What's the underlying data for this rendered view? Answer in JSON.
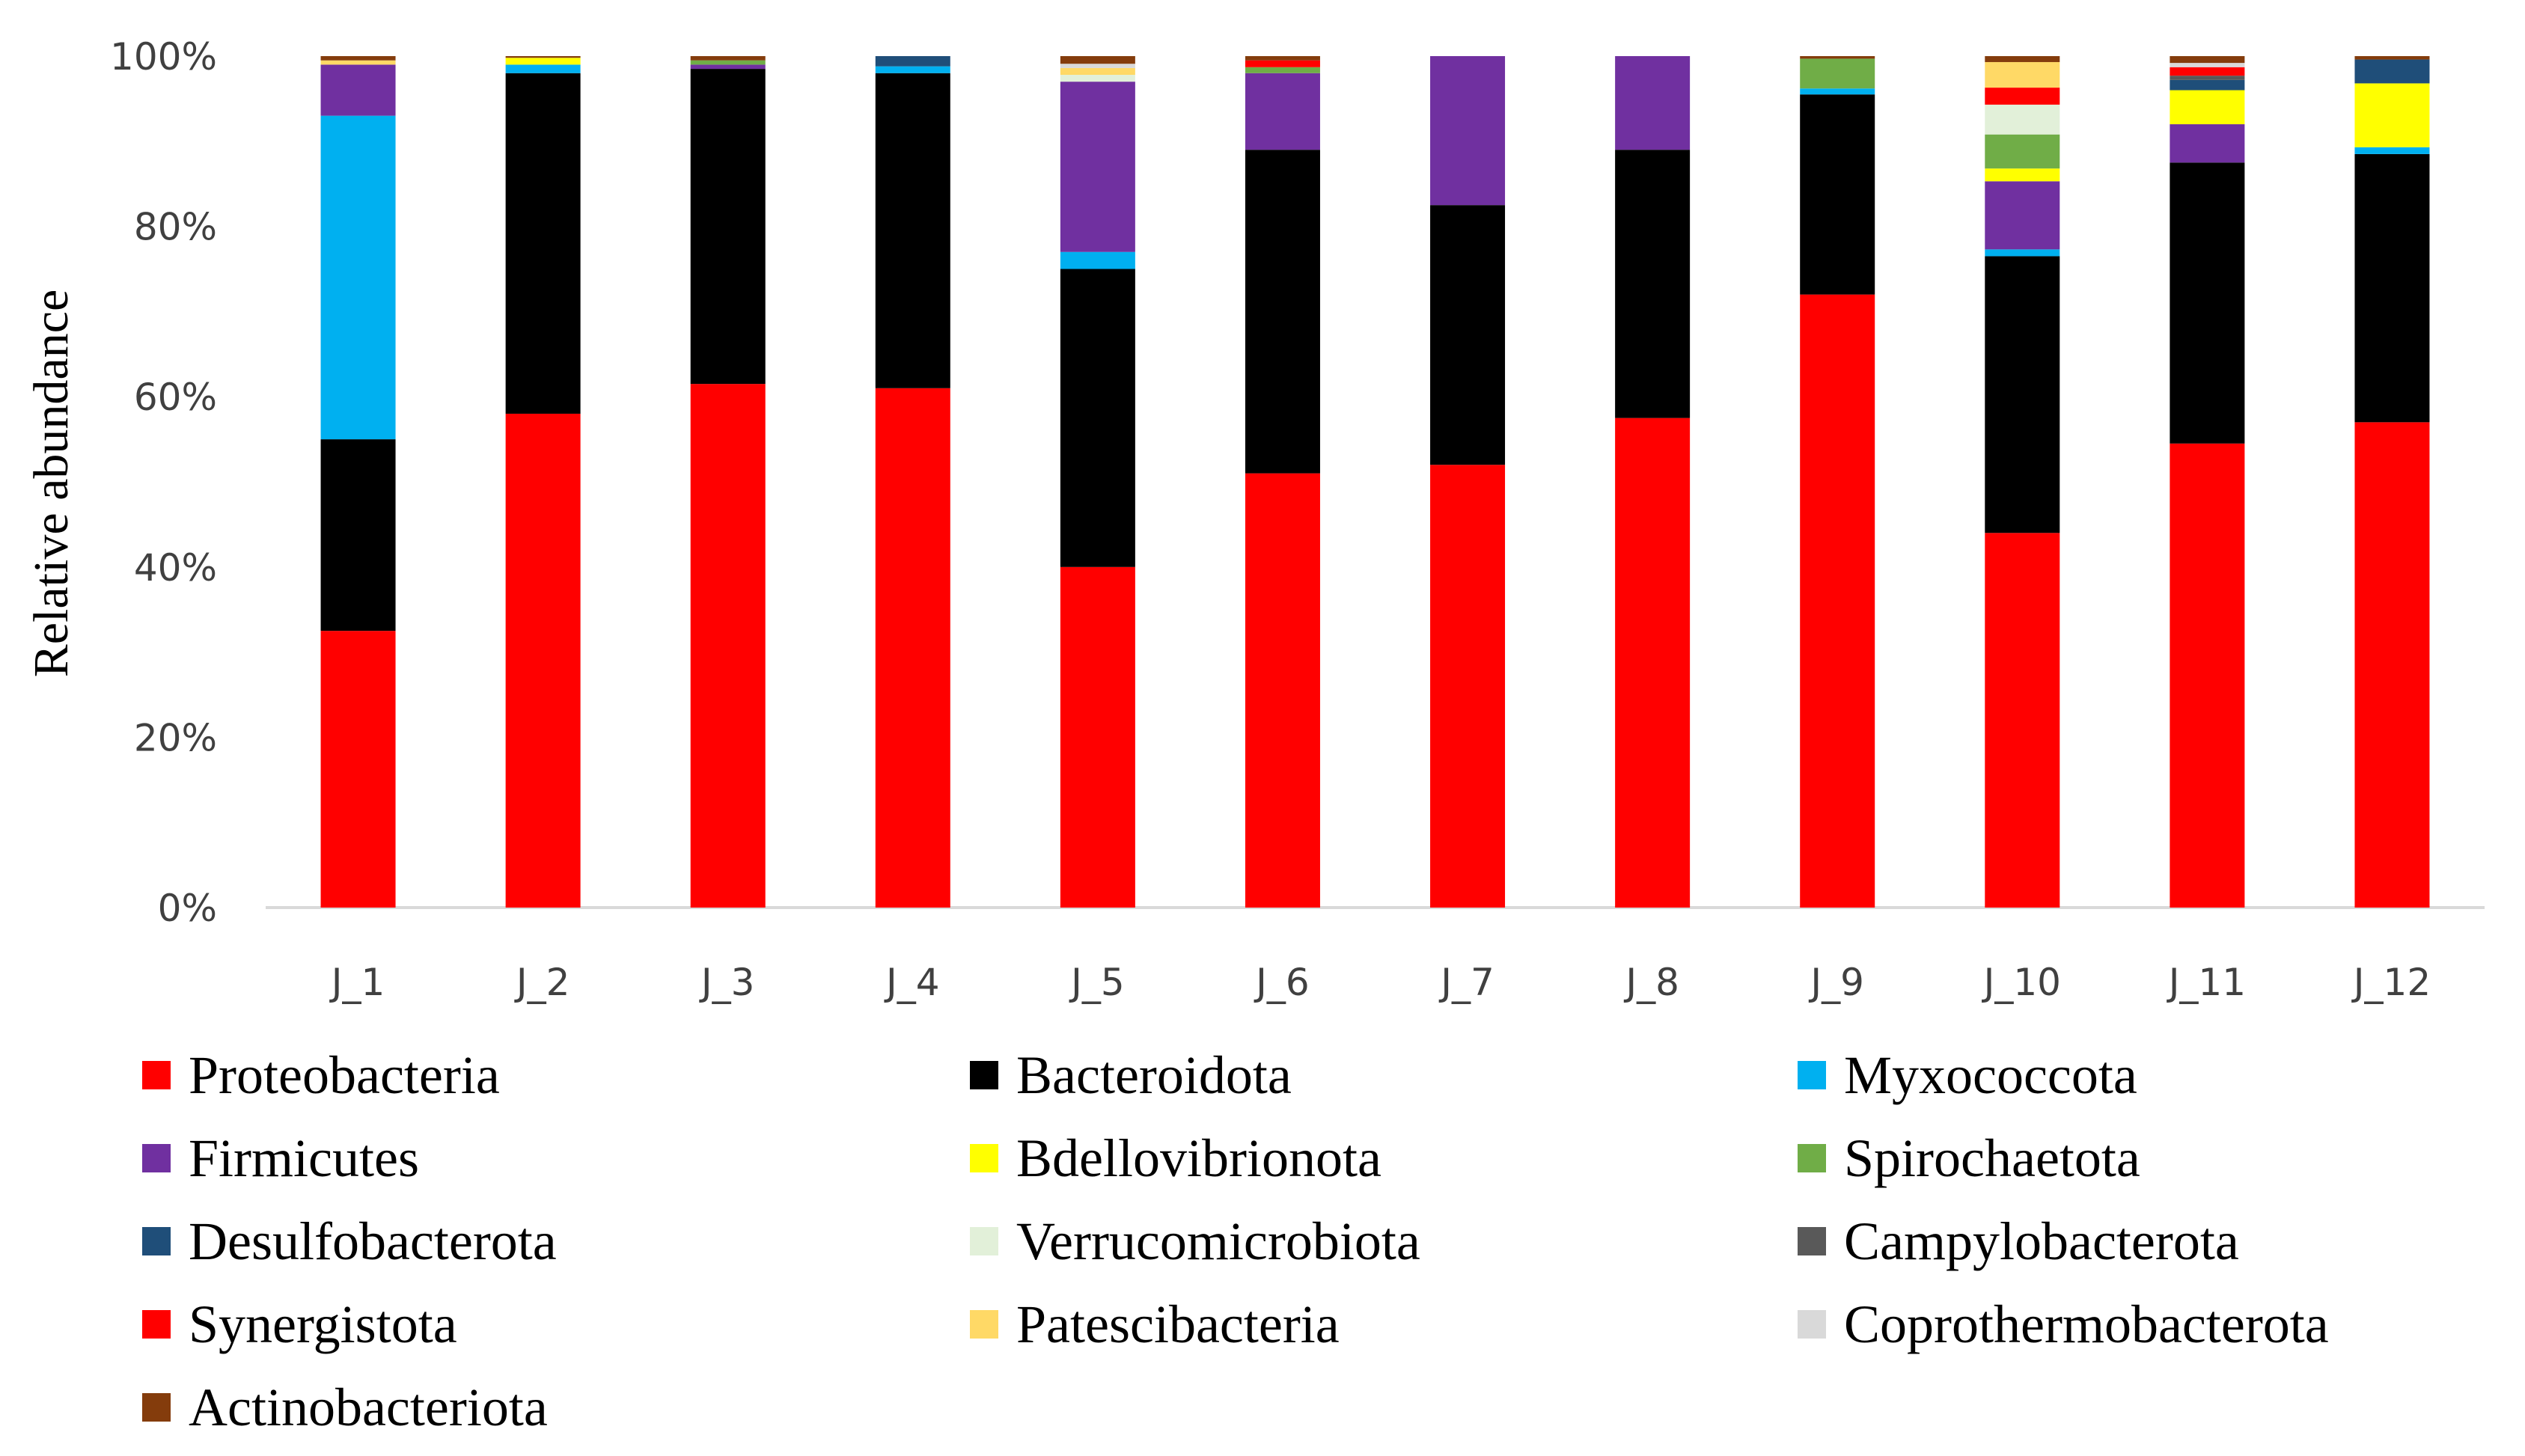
{
  "chart_data": {
    "type": "bar",
    "stacked": true,
    "title": "",
    "xlabel": "",
    "ylabel": "Relative abundance",
    "ylim": [
      0,
      100
    ],
    "y_ticks": [
      "0%",
      "20%",
      "40%",
      "60%",
      "80%",
      "100%"
    ],
    "categories": [
      "J_1",
      "J_2",
      "J_3",
      "J_4",
      "J_5",
      "J_6",
      "J_7",
      "J_8",
      "J_9",
      "J_10",
      "J_11",
      "J_12"
    ],
    "legend_position": "bottom",
    "series": [
      {
        "name": "Proteobacteria",
        "color": "#ff0000",
        "values": [
          32.5,
          58,
          61.5,
          61,
          40,
          51,
          52,
          57.5,
          72,
          44,
          54.5,
          57
        ]
      },
      {
        "name": "Bacteroidota",
        "color": "#000000",
        "values": [
          22.5,
          40,
          37,
          37,
          35,
          38,
          30.5,
          31.5,
          23.5,
          32.5,
          33,
          31.5
        ]
      },
      {
        "name": "Myxococcota",
        "color": "#00b0f0",
        "values": [
          38,
          1,
          0,
          0.8,
          2,
          0,
          0,
          0,
          0.7,
          0.8,
          0,
          0.8
        ]
      },
      {
        "name": "Firmicutes",
        "color": "#7030a0",
        "values": [
          6,
          0,
          0.5,
          0,
          20,
          9,
          17.5,
          11,
          0,
          8,
          4.5,
          0
        ]
      },
      {
        "name": "Bdellovibrionota",
        "color": "#ffff00",
        "values": [
          0,
          0.8,
          0,
          0,
          0,
          0,
          0,
          0,
          0,
          1.5,
          4,
          7.5
        ]
      },
      {
        "name": "Spirochaetota",
        "color": "#70ad47",
        "values": [
          0,
          0,
          0.5,
          0,
          0,
          0.7,
          0,
          0,
          3.5,
          4,
          0,
          0
        ]
      },
      {
        "name": "Desulfobacterota",
        "color": "#1f4e79",
        "values": [
          0,
          0,
          0,
          1.2,
          0,
          0,
          0,
          0,
          0,
          0,
          1.2,
          2.8
        ]
      },
      {
        "name": "Verrucomicrobiota",
        "color": "#e2f0d9",
        "values": [
          0,
          0,
          0,
          0,
          0.8,
          0,
          0,
          0,
          0,
          3.5,
          0,
          0
        ]
      },
      {
        "name": "Campylobacterota",
        "color": "#595959",
        "values": [
          0,
          0,
          0,
          0,
          0,
          0,
          0,
          0,
          0,
          0,
          0.5,
          0
        ]
      },
      {
        "name": "Synergistota",
        "color": "#ff0000",
        "values": [
          0,
          0,
          0,
          0,
          0,
          0.8,
          0,
          0,
          0,
          2,
          1,
          0
        ]
      },
      {
        "name": "Patescibacteria",
        "color": "#ffd966",
        "values": [
          0.5,
          0,
          0,
          0,
          0.8,
          0,
          0,
          0,
          0,
          3,
          0,
          0
        ]
      },
      {
        "name": "Coprothermobacterota",
        "color": "#d9d9d9",
        "values": [
          0,
          0,
          0,
          0,
          0.5,
          0,
          0,
          0,
          0,
          0,
          0.5,
          0
        ]
      },
      {
        "name": "Actinobacteriota",
        "color": "#843c0c",
        "values": [
          0.5,
          0.2,
          0.5,
          0,
          0.9,
          0.5,
          0,
          0,
          0.3,
          0.7,
          0.8,
          0.4
        ]
      }
    ]
  }
}
